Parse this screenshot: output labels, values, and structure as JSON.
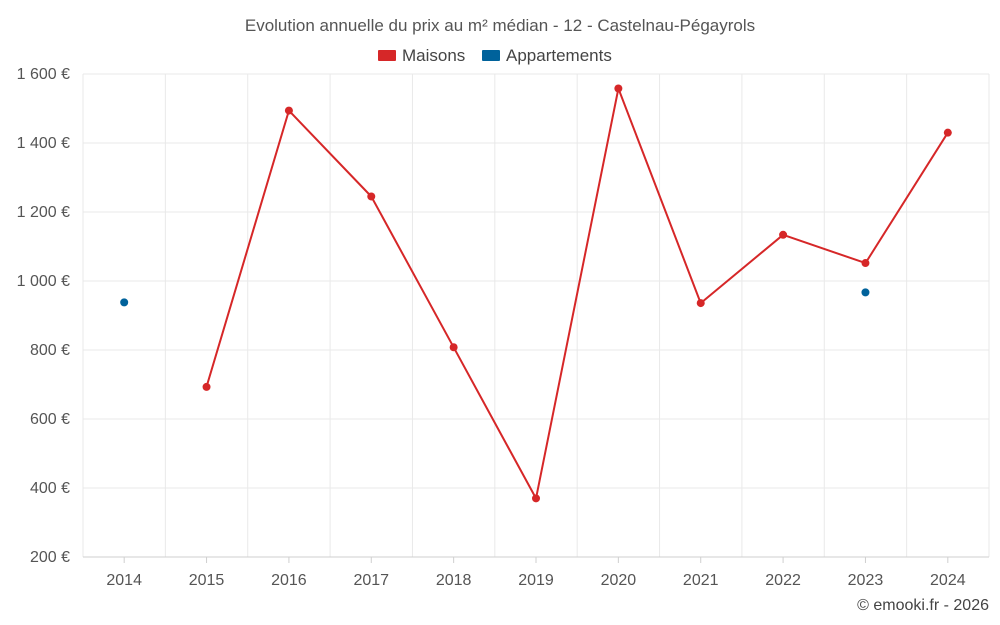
{
  "chart_data": {
    "type": "line",
    "title": "Evolution annuelle du prix au m² médian - 12 - Castelnau-Pégayrols",
    "categories": [
      "2014",
      "2015",
      "2016",
      "2017",
      "2018",
      "2019",
      "2020",
      "2021",
      "2022",
      "2023",
      "2024"
    ],
    "series": [
      {
        "name": "Maisons",
        "color": "#d62728",
        "values": [
          null,
          693,
          1494,
          1245,
          808,
          370,
          1558,
          936,
          1134,
          1052,
          1430
        ]
      },
      {
        "name": "Appartements",
        "color": "#00629b",
        "values": [
          938,
          null,
          null,
          null,
          null,
          null,
          null,
          null,
          null,
          967,
          null
        ]
      }
    ],
    "ylim": [
      200,
      1600
    ],
    "yticks": [
      200,
      400,
      600,
      800,
      1000,
      1200,
      1400,
      1600
    ],
    "ytick_labels": [
      "200 €",
      "400 €",
      "600 €",
      "800 €",
      "1 000 €",
      "1 200 €",
      "1 400 €",
      "1 600 €"
    ],
    "xlabel": "",
    "ylabel": "",
    "grid": true,
    "legend_position": "top-center"
  },
  "credit": "© emooki.fr - 2026"
}
